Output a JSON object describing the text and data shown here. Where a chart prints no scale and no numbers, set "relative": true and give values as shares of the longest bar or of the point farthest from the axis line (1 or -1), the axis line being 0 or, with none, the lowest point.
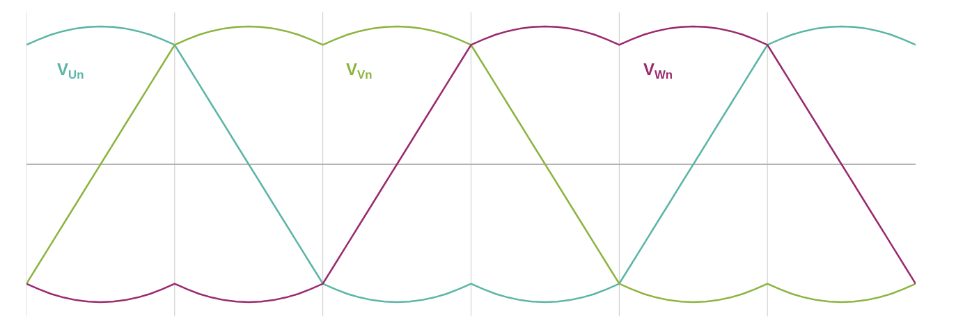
{
  "chart_data": {
    "type": "line",
    "relative": true,
    "grid": "x",
    "legend": false,
    "marker": "none",
    "line_style": "solid",
    "categories": [
      null,
      null,
      null,
      null,
      null,
      null,
      null,
      null,
      null,
      null,
      null,
      null,
      null,
      null,
      null,
      null,
      null,
      null,
      null,
      null,
      null,
      null,
      null,
      null,
      null,
      null,
      null,
      null,
      null,
      null,
      null,
      null,
      null,
      null,
      null,
      null,
      null,
      null,
      null,
      null,
      null,
      null,
      null,
      null,
      null,
      null,
      null,
      null,
      null,
      null,
      null,
      null,
      null,
      null,
      null,
      null,
      null,
      null,
      null,
      null,
      null,
      null,
      null,
      null,
      null,
      null,
      null,
      null,
      null,
      null,
      null,
      null,
      null
    ],
    "series": [
      {
        "name": "V$_{Un}$",
        "color": "#5bb5a6",
        "values": [
          0.866,
          0.906,
          0.94,
          0.966,
          0.985,
          0.996,
          1,
          0.996,
          0.985,
          0.966,
          0.94,
          0.906,
          0.866,
          0.722,
          0.577,
          0.433,
          0.289,
          0.144,
          0,
          -0.144,
          -0.289,
          -0.433,
          -0.577,
          -0.722,
          -0.866,
          -0.906,
          -0.94,
          -0.966,
          -0.985,
          -0.996,
          -1,
          -0.996,
          -0.985,
          -0.966,
          -0.94,
          -0.906,
          -0.866,
          -0.906,
          -0.94,
          -0.966,
          -0.985,
          -0.996,
          -1,
          -0.996,
          -0.985,
          -0.966,
          -0.94,
          -0.906,
          -0.866,
          -0.722,
          -0.577,
          -0.433,
          -0.289,
          -0.144,
          0,
          0.144,
          0.289,
          0.433,
          0.577,
          0.722,
          0.866,
          0.906,
          0.94,
          0.966,
          0.985,
          0.996,
          1,
          0.996,
          0.985,
          0.966,
          0.94,
          0.906,
          0.866
        ]
      },
      {
        "name": "V$_{Vn}$",
        "color": "#8db43f",
        "values": [
          -0.866,
          -0.722,
          -0.577,
          -0.433,
          -0.289,
          -0.144,
          0,
          0.144,
          0.289,
          0.433,
          0.577,
          0.722,
          0.866,
          0.906,
          0.94,
          0.966,
          0.985,
          0.996,
          1,
          0.996,
          0.985,
          0.966,
          0.94,
          0.906,
          0.866,
          0.906,
          0.94,
          0.966,
          0.985,
          0.996,
          1,
          0.996,
          0.985,
          0.966,
          0.94,
          0.906,
          0.866,
          0.722,
          0.577,
          0.433,
          0.289,
          0.144,
          0,
          -0.144,
          -0.289,
          -0.433,
          -0.577,
          -0.722,
          -0.866,
          -0.906,
          -0.94,
          -0.966,
          -0.985,
          -0.996,
          -1,
          -0.996,
          -0.985,
          -0.966,
          -0.94,
          -0.906,
          -0.866,
          -0.906,
          -0.94,
          -0.966,
          -0.985,
          -0.996,
          -1,
          -0.996,
          -0.985,
          -0.966,
          -0.94,
          -0.906,
          -0.866
        ]
      },
      {
        "name": "V$_{Wn}$",
        "color": "#9a2a6e",
        "values": [
          -0.866,
          -0.906,
          -0.94,
          -0.966,
          -0.985,
          -0.996,
          -1,
          -0.996,
          -0.985,
          -0.966,
          -0.94,
          -0.906,
          -0.866,
          -0.906,
          -0.94,
          -0.966,
          -0.985,
          -0.996,
          -1,
          -0.996,
          -0.985,
          -0.966,
          -0.94,
          -0.906,
          -0.866,
          -0.722,
          -0.577,
          -0.433,
          -0.289,
          -0.144,
          0,
          0.144,
          0.289,
          0.433,
          0.577,
          0.722,
          0.866,
          0.906,
          0.94,
          0.966,
          0.985,
          0.996,
          1,
          0.996,
          0.985,
          0.966,
          0.94,
          0.906,
          0.866,
          0.906,
          0.94,
          0.966,
          0.985,
          0.996,
          1,
          0.996,
          0.985,
          0.966,
          0.94,
          0.906,
          0.866,
          0.722,
          0.577,
          0.433,
          0.289,
          0.144,
          0,
          -0.144,
          -0.289,
          -0.433,
          -0.577,
          -0.722,
          -0.866
        ]
      }
    ]
  }
}
